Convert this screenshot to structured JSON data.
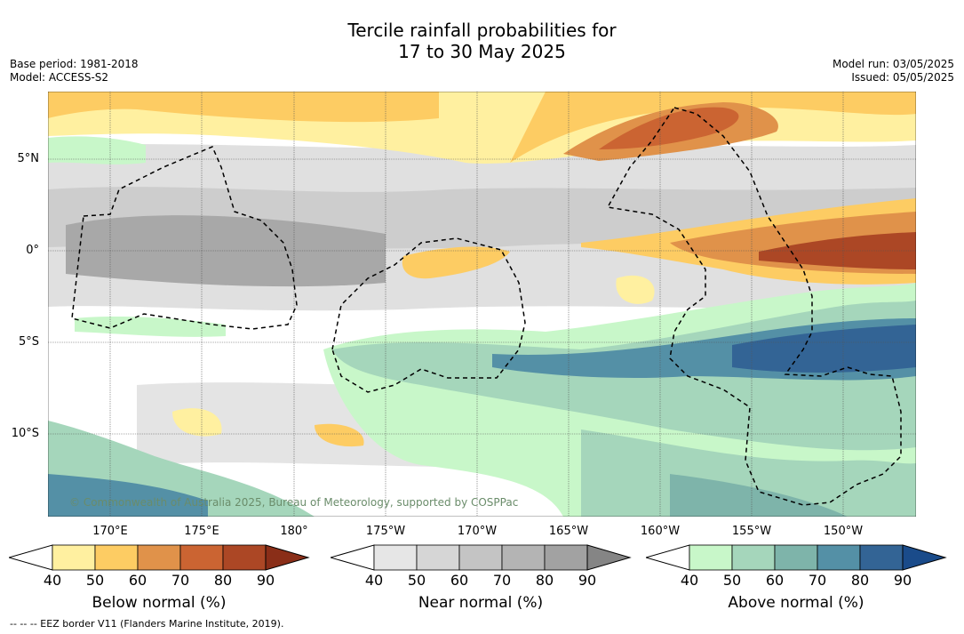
{
  "title_line1": "Tercile rainfall probabilities for",
  "title_line2": "17 to 30 May 2025",
  "base_period": "Base period: 1981-2018",
  "model": "Model: ACCESS-S2",
  "model_run": "Model run: 03/05/2025",
  "issued": "Issued: 05/05/2025",
  "lat_labels": [
    "5°N",
    "0°",
    "5°S",
    "10°S"
  ],
  "lon_labels": [
    "170°E",
    "175°E",
    "180°",
    "175°W",
    "170°W",
    "165°W",
    "160°W",
    "155°W",
    "150°W"
  ],
  "copyright": "© Commonwealth of Australia 2025, Bureau of Meteorology, supported by COSPPac",
  "colorbars": [
    {
      "label": "Below normal (%)",
      "ticks": [
        "40",
        "50",
        "60",
        "70",
        "80",
        "90"
      ],
      "colors": [
        "#fff0a0",
        "#fdcc63",
        "#e0924a",
        "#cb6432",
        "#ac4725",
        "#8a2e18"
      ]
    },
    {
      "label": "Near normal (%)",
      "ticks": [
        "40",
        "50",
        "60",
        "70",
        "80",
        "90"
      ],
      "colors": [
        "#e6e6e6",
        "#d6d6d6",
        "#c4c4c4",
        "#b4b4b4",
        "#a2a2a2",
        "#858585"
      ]
    },
    {
      "label": "Above normal (%)",
      "ticks": [
        "40",
        "50",
        "60",
        "70",
        "80",
        "90"
      ],
      "colors": [
        "#c8f7c9",
        "#a5d6bb",
        "#7eb4aa",
        "#5490a6",
        "#336495",
        "#1a4b8a"
      ]
    }
  ],
  "eez_note": "--  --  -- EEZ border V11 (Flanders Marine Institute, 2019)."
}
